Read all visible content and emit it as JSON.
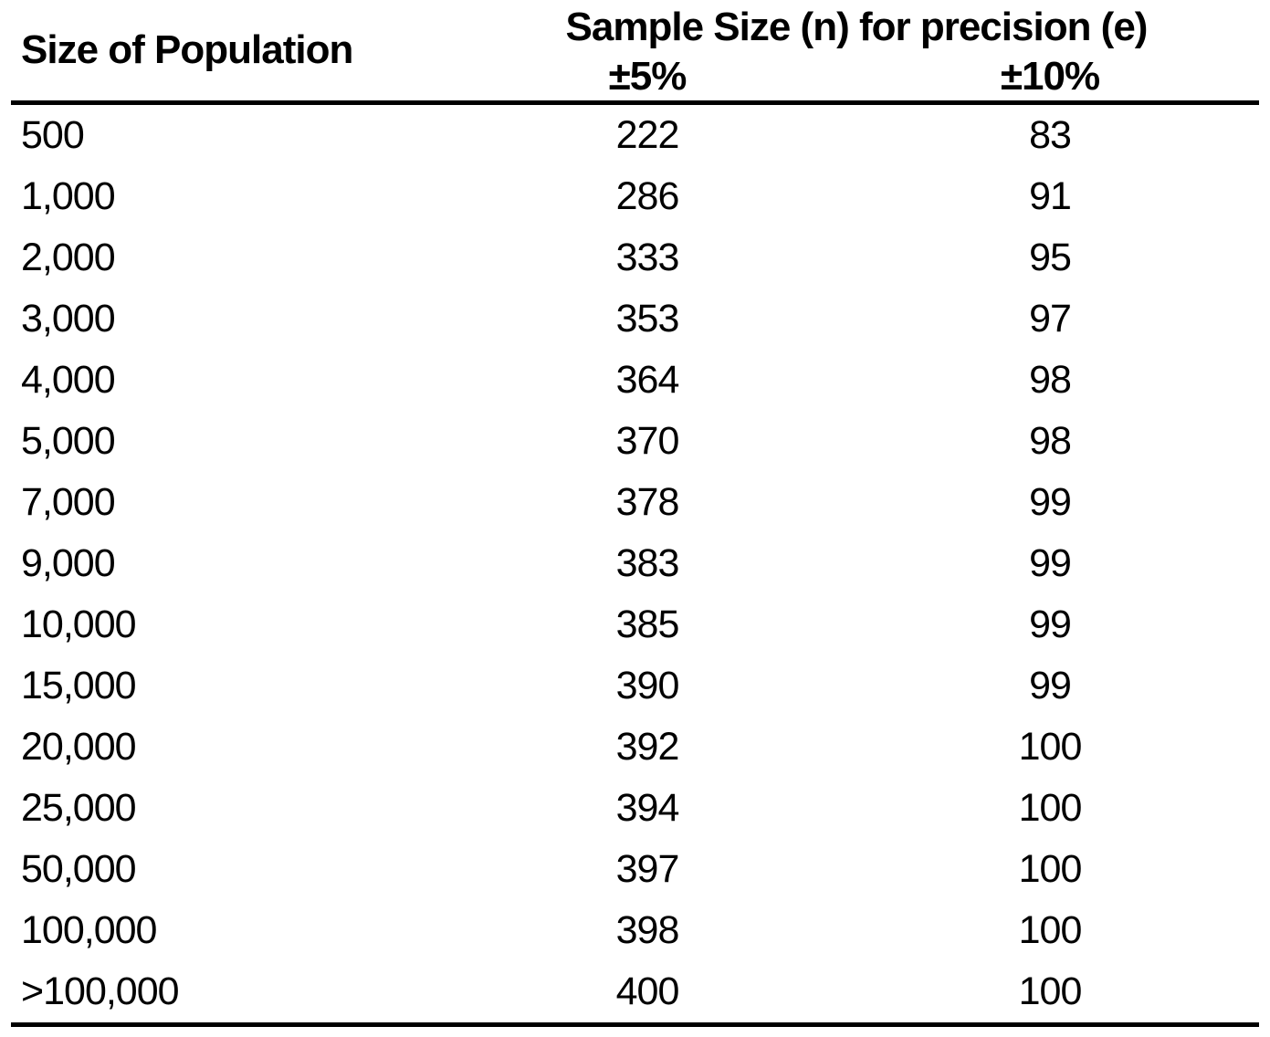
{
  "page": {
    "background": "#ffffff",
    "text_color": "#000000",
    "rule_color": "#000000"
  },
  "table": {
    "population_header": "Size of Population",
    "group_header": "Sample Size (n) for precision (e)",
    "subheaders": {
      "e5": "±5%",
      "e10": "±10%"
    },
    "rows": [
      {
        "population": "500",
        "n5": "222",
        "n10": "83"
      },
      {
        "population": "1,000",
        "n5": "286",
        "n10": "91"
      },
      {
        "population": "2,000",
        "n5": "333",
        "n10": "95"
      },
      {
        "population": "3,000",
        "n5": "353",
        "n10": "97"
      },
      {
        "population": "4,000",
        "n5": "364",
        "n10": "98"
      },
      {
        "population": "5,000",
        "n5": "370",
        "n10": "98"
      },
      {
        "population": "7,000",
        "n5": "378",
        "n10": "99"
      },
      {
        "population": "9,000",
        "n5": "383",
        "n10": "99"
      },
      {
        "population": "10,000",
        "n5": "385",
        "n10": "99"
      },
      {
        "population": "15,000",
        "n5": "390",
        "n10": "99"
      },
      {
        "population": "20,000",
        "n5": "392",
        "n10": "100"
      },
      {
        "population": "25,000",
        "n5": "394",
        "n10": "100"
      },
      {
        "population": "50,000",
        "n5": "397",
        "n10": "100"
      },
      {
        "population": "100,000",
        "n5": "398",
        "n10": "100"
      },
      {
        "population": ">100,000",
        "n5": "400",
        "n10": "100"
      }
    ]
  },
  "chart_data": {
    "type": "table",
    "title": "Sample Size (n) for precision (e)",
    "columns": [
      "Size of Population",
      "Sample Size (n) for precision (e) ±5%",
      "Sample Size (n) for precision (e) ±10%"
    ],
    "rows": [
      [
        "500",
        222,
        83
      ],
      [
        "1,000",
        286,
        91
      ],
      [
        "2,000",
        333,
        95
      ],
      [
        "3,000",
        353,
        97
      ],
      [
        "4,000",
        364,
        98
      ],
      [
        "5,000",
        370,
        98
      ],
      [
        "7,000",
        378,
        99
      ],
      [
        "9,000",
        383,
        99
      ],
      [
        "10,000",
        385,
        99
      ],
      [
        "15,000",
        390,
        99
      ],
      [
        "20,000",
        392,
        100
      ],
      [
        "25,000",
        394,
        100
      ],
      [
        "50,000",
        397,
        100
      ],
      [
        "100,000",
        398,
        100
      ],
      [
        ">100,000",
        400,
        100
      ]
    ]
  }
}
